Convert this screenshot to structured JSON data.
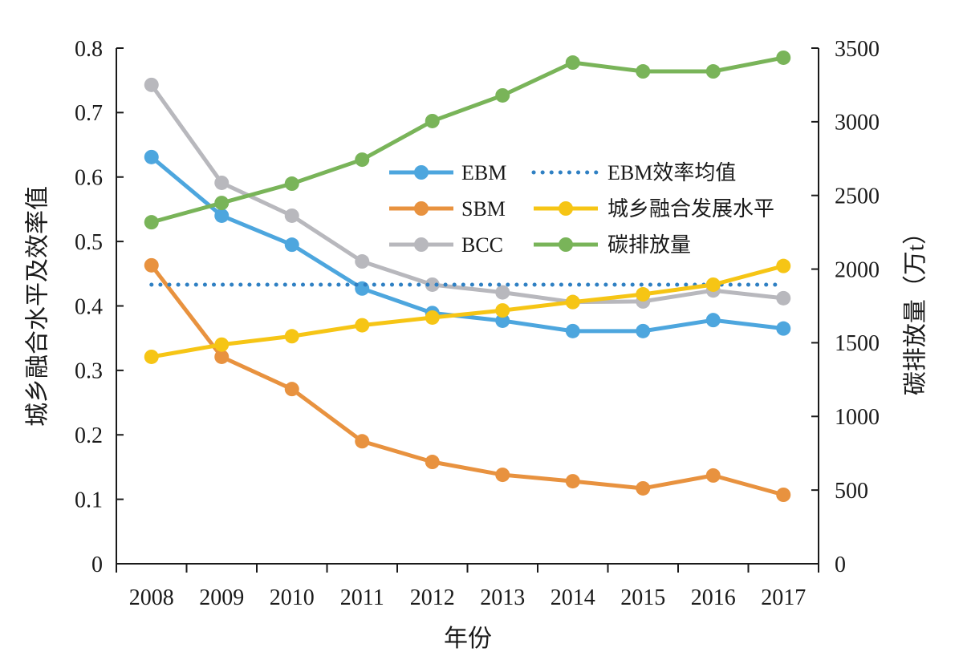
{
  "chart_data": {
    "type": "line",
    "categories": [
      "2008",
      "2009",
      "2010",
      "2011",
      "2012",
      "2013",
      "2014",
      "2015",
      "2016",
      "2017"
    ],
    "xlabel": "年份",
    "ylabel": "城乡融合水平及效率值",
    "y2label": "碳排放量（万t）",
    "ylim": [
      0,
      0.8
    ],
    "y2lim": [
      0,
      3500
    ],
    "yticks": [
      "0",
      "0.1",
      "0.2",
      "0.3",
      "0.4",
      "0.5",
      "0.6",
      "0.7",
      "0.8"
    ],
    "y2ticks": [
      "0",
      "500",
      "1000",
      "1500",
      "2000",
      "2500",
      "3000",
      "3500"
    ],
    "grid": false,
    "legend": "inside-top-center, two columns",
    "series": [
      {
        "name": "EBM",
        "axis": "left",
        "style": "solid",
        "marker": true,
        "color": "#4da6de",
        "values": [
          0.631,
          0.54,
          0.495,
          0.427,
          0.389,
          0.377,
          0.361,
          0.361,
          0.378,
          0.365
        ]
      },
      {
        "name": "SBM",
        "axis": "left",
        "style": "solid",
        "marker": true,
        "color": "#e8923f",
        "values": [
          0.463,
          0.321,
          0.271,
          0.19,
          0.158,
          0.138,
          0.128,
          0.117,
          0.137,
          0.107
        ]
      },
      {
        "name": "BCC",
        "axis": "left",
        "style": "solid",
        "marker": true,
        "color": "#b8b8bd",
        "values": [
          0.743,
          0.591,
          0.54,
          0.469,
          0.433,
          0.421,
          0.406,
          0.407,
          0.424,
          0.412
        ]
      },
      {
        "name": "EBM效率均值",
        "axis": "left",
        "style": "dotted",
        "marker": false,
        "color": "#2f80c3",
        "values": [
          0.433,
          0.433,
          0.433,
          0.433,
          0.433,
          0.433,
          0.433,
          0.433,
          0.433,
          0.433
        ]
      },
      {
        "name": "城乡融合发展水平",
        "axis": "left",
        "style": "solid",
        "marker": true,
        "color": "#f6c515",
        "values": [
          0.321,
          0.34,
          0.353,
          0.37,
          0.382,
          0.393,
          0.406,
          0.418,
          0.433,
          0.462
        ]
      },
      {
        "name": "碳排放量",
        "axis": "right",
        "style": "solid",
        "marker": true,
        "color": "#79b459",
        "values": [
          2318,
          2449,
          2580,
          2743,
          3005,
          3179,
          3402,
          3342,
          3342,
          3435
        ]
      }
    ]
  }
}
